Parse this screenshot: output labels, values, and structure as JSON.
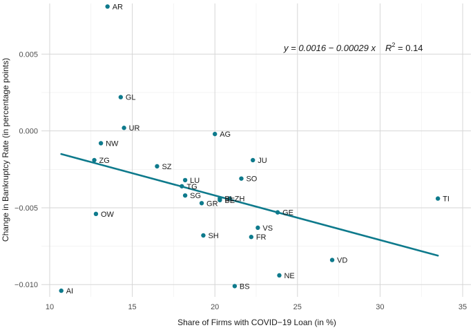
{
  "chart_data": {
    "type": "scatter",
    "title": "",
    "xlabel": "Share of Firms with COVID−19 Loan (in %)",
    "ylabel": "Change in Bankruptcy Rate (in percentage points)",
    "xlim": [
      9.5,
      35.5
    ],
    "ylim": [
      -0.0108,
      0.0083
    ],
    "x_ticks": [
      10,
      15,
      20,
      25,
      30,
      35
    ],
    "x_tick_labels": [
      "10",
      "15",
      "20",
      "25",
      "30",
      "35"
    ],
    "y_ticks": [
      -0.01,
      -0.005,
      0.0,
      0.005
    ],
    "y_tick_labels": [
      "−0.010",
      "−0.005",
      "0.000",
      "0.005"
    ],
    "grid": true,
    "point_color": "#0e7a8c",
    "line_color": "#0e7a8c",
    "points": [
      {
        "label": "AR",
        "x": 13.5,
        "y": 0.0081
      },
      {
        "label": "GL",
        "x": 14.3,
        "y": 0.0022
      },
      {
        "label": "UR",
        "x": 14.5,
        "y": 0.0002
      },
      {
        "label": "NW",
        "x": 13.1,
        "y": -0.0008
      },
      {
        "label": "ZG",
        "x": 12.7,
        "y": -0.0019
      },
      {
        "label": "AG",
        "x": 20.0,
        "y": -0.0002
      },
      {
        "label": "JU",
        "x": 22.3,
        "y": -0.0019
      },
      {
        "label": "SZ",
        "x": 16.5,
        "y": -0.0023
      },
      {
        "label": "LU",
        "x": 18.2,
        "y": -0.0032
      },
      {
        "label": "SO",
        "x": 21.6,
        "y": -0.0031
      },
      {
        "label": "TG",
        "x": 18.0,
        "y": -0.0036
      },
      {
        "label": "SG",
        "x": 18.2,
        "y": -0.0042
      },
      {
        "label": "GR",
        "x": 19.2,
        "y": -0.0047
      },
      {
        "label": "BL",
        "x": 20.3,
        "y": -0.0044
      },
      {
        "label": "ZH",
        "x": 20.9,
        "y": -0.0044
      },
      {
        "label": "BE",
        "x": 20.3,
        "y": -0.0045
      },
      {
        "label": "GE",
        "x": 23.8,
        "y": -0.0053
      },
      {
        "label": "TI",
        "x": 33.5,
        "y": -0.0044
      },
      {
        "label": "OW",
        "x": 12.8,
        "y": -0.0054
      },
      {
        "label": "VS",
        "x": 22.6,
        "y": -0.0063
      },
      {
        "label": "SH",
        "x": 19.3,
        "y": -0.0068
      },
      {
        "label": "FR",
        "x": 22.2,
        "y": -0.0069
      },
      {
        "label": "VD",
        "x": 27.1,
        "y": -0.0084
      },
      {
        "label": "NE",
        "x": 23.9,
        "y": -0.0094
      },
      {
        "label": "BS",
        "x": 21.2,
        "y": -0.0101
      },
      {
        "label": "AI",
        "x": 10.7,
        "y": -0.0104
      }
    ],
    "fit_line": {
      "x_start": 10.7,
      "x_end": 33.5,
      "intercept": 0.0016,
      "slope": -0.00029
    },
    "annotation": {
      "equation": "y = 0.0016 − 0.00029 x",
      "r2_symbol": "R",
      "r2_exp": "2",
      "r2_value": " = 0.14"
    }
  }
}
